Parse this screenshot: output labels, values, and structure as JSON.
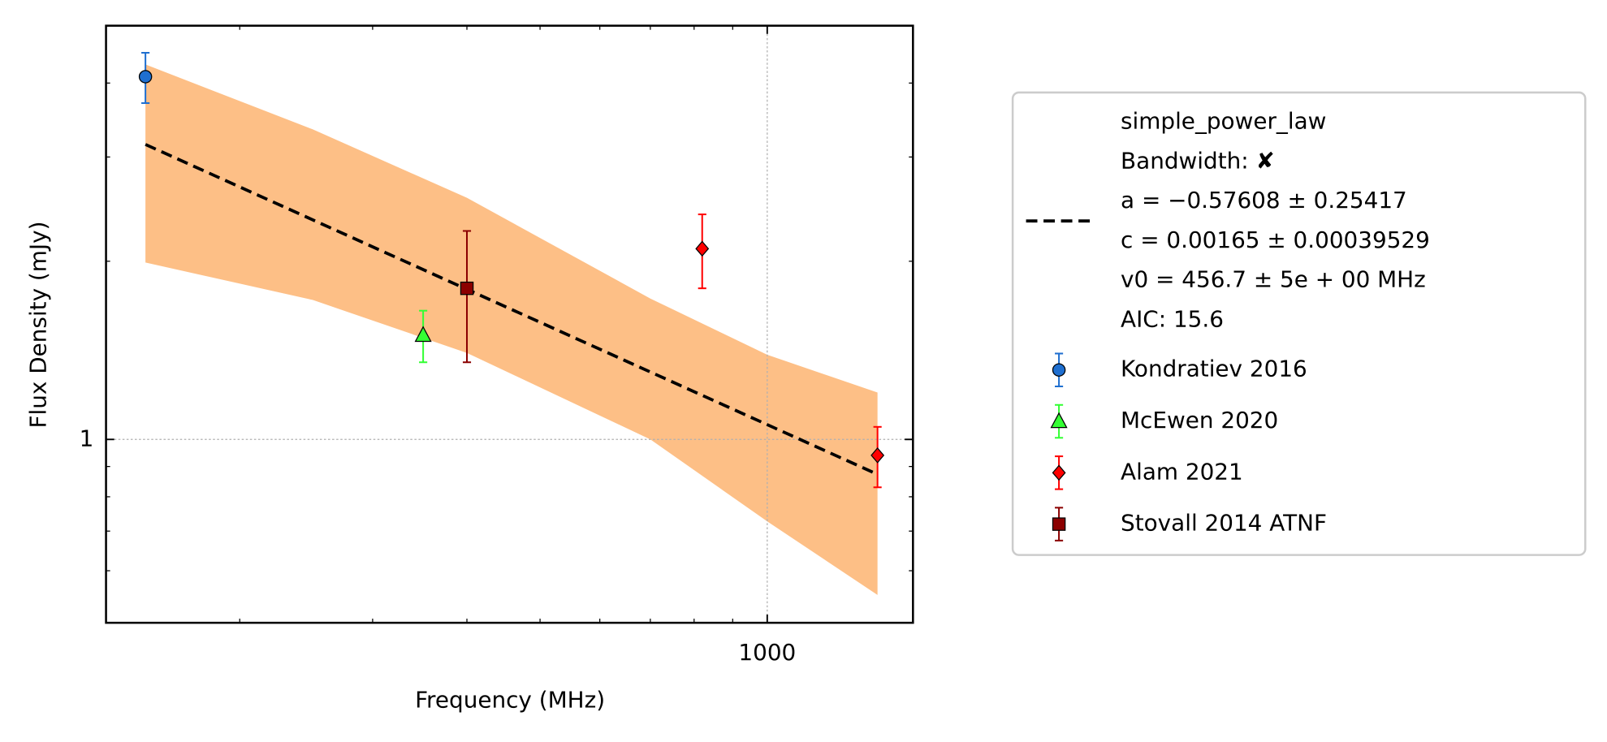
{
  "chart_data": {
    "type": "scatter",
    "xlabel": "Frequency (MHz)",
    "ylabel": "Flux Density (mJy)",
    "xscale": "log",
    "yscale": "log",
    "xlim": [
      133,
      1560
    ],
    "ylim": [
      0.49,
      5
    ],
    "xticks": [
      1000
    ],
    "yticks": [
      1
    ],
    "xminorticks": [
      200,
      300,
      400,
      500,
      600,
      700,
      800,
      900
    ],
    "yminorticks": [
      0.6,
      0.7,
      0.8,
      0.9,
      2,
      3,
      4
    ],
    "grid": true,
    "legend": "outside right",
    "fit": {
      "label_lines": [
        "simple_power_law",
        "Bandwidth: ✘",
        "a = −0.57608 ± 0.25417",
        "c = 0.00165 ± 0.00039529",
        "v0 = 456.7 ± 5e + 00 MHz",
        "AIC: 15.6"
      ],
      "color": "#000000",
      "x": [
        150,
        1400
      ],
      "values": [
        3.15,
        0.873
      ],
      "band_color": "#fdbf86",
      "band_x": [
        150,
        250,
        400,
        700,
        1000,
        1400
      ],
      "band_upper": [
        4.3,
        3.34,
        2.56,
        1.73,
        1.39,
        1.2
      ],
      "band_lower": [
        1.99,
        1.72,
        1.4,
        1.0,
        0.727,
        0.546
      ]
    },
    "series": [
      {
        "name": "Kondratiev 2016",
        "color": "#1f6fd0",
        "marker": "circle",
        "x": [
          150
        ],
        "values": [
          4.1
        ],
        "errors": [
          0.4
        ]
      },
      {
        "name": "McEwen 2020",
        "color": "#33ff33",
        "marker": "triangle",
        "x": [
          350
        ],
        "values": [
          1.5
        ],
        "errors": [
          0.15
        ]
      },
      {
        "name": "Alam 2021",
        "color": "#ff0000",
        "marker": "diamond",
        "x": [
          820,
          1400
        ],
        "values": [
          2.1,
          0.94
        ],
        "errors": [
          0.3,
          0.11
        ]
      },
      {
        "name": "Stovall 2014 ATNF",
        "color": "#8b0000",
        "marker": "square",
        "x": [
          400
        ],
        "values": [
          1.8
        ],
        "errors": [
          0.45
        ]
      }
    ]
  }
}
